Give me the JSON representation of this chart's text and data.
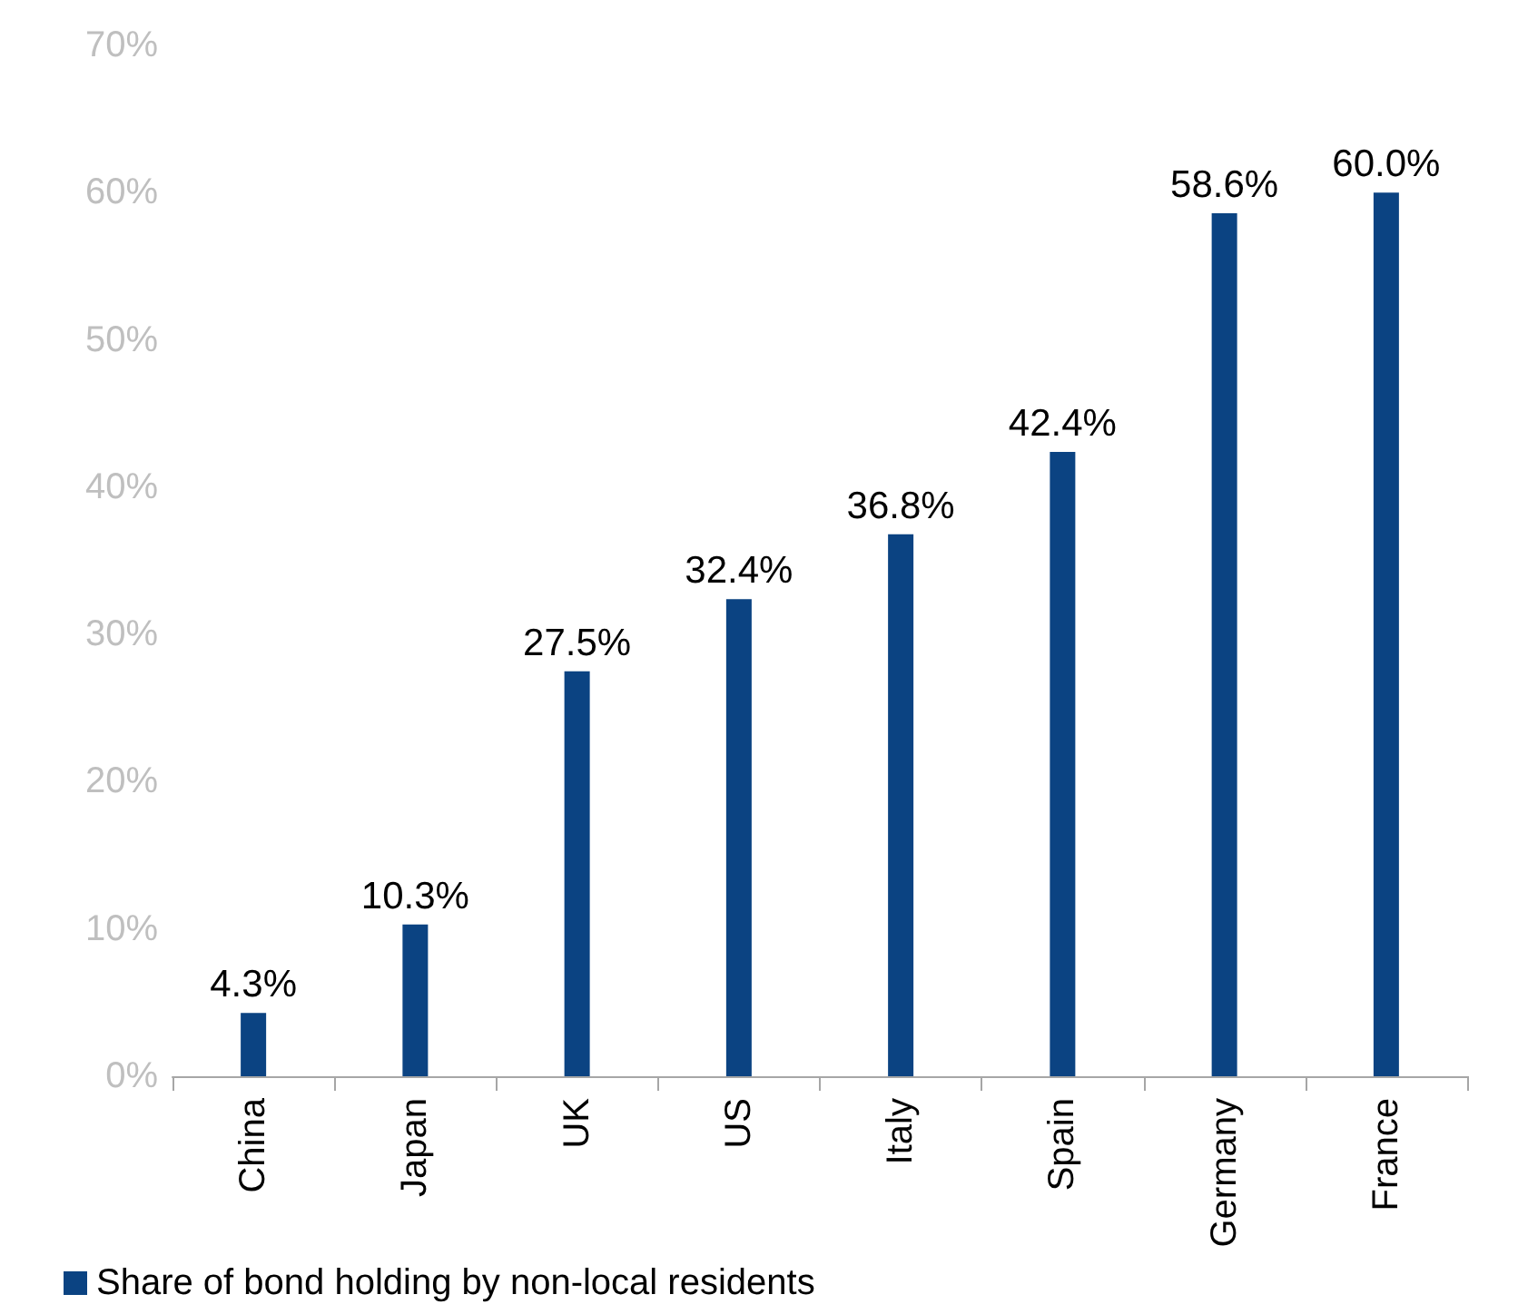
{
  "chart_data": {
    "type": "bar",
    "categories": [
      "China",
      "Japan",
      "UK",
      "US",
      "Italy",
      "Spain",
      "Germany",
      "France"
    ],
    "series": [
      {
        "name": "Share of bond holding by non-local residents",
        "color": "#0b4382",
        "values": [
          4.3,
          10.3,
          27.5,
          32.4,
          36.8,
          42.4,
          58.6,
          60.0
        ],
        "value_labels": [
          "4.3%",
          "10.3%",
          "27.5%",
          "32.4%",
          "36.8%",
          "42.4%",
          "58.6%",
          "60.0%"
        ]
      }
    ],
    "ylim": [
      0,
      70
    ],
    "yticks": [
      {
        "value": 0,
        "label": "0%"
      },
      {
        "value": 10,
        "label": "10%"
      },
      {
        "value": 20,
        "label": "20%"
      },
      {
        "value": 30,
        "label": "30%"
      },
      {
        "value": 40,
        "label": "40%"
      },
      {
        "value": 50,
        "label": "50%"
      },
      {
        "value": 60,
        "label": "60%"
      },
      {
        "value": 70,
        "label": "70%"
      }
    ],
    "grid": false,
    "legend": "bottom left"
  }
}
